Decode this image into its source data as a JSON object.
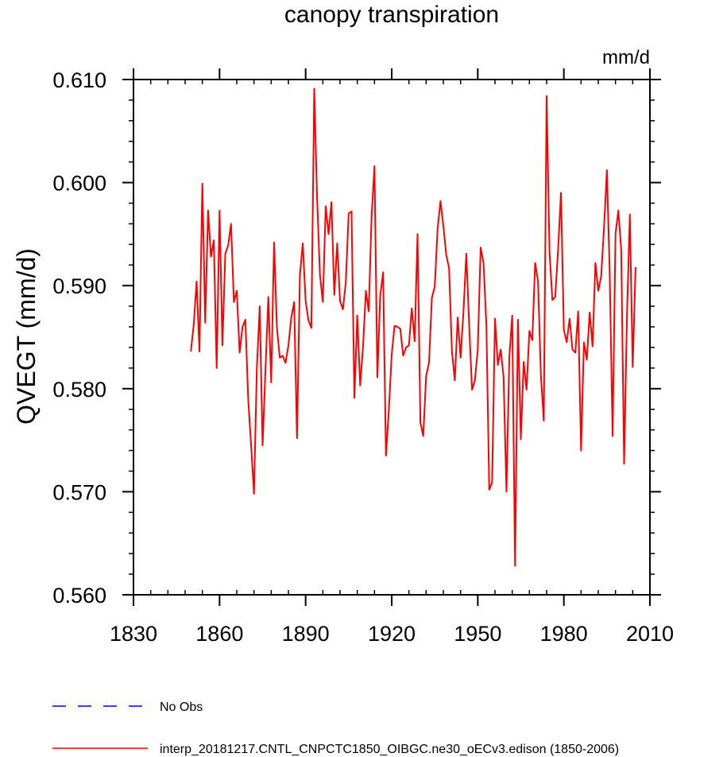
{
  "chart_data": {
    "type": "line",
    "title": "canopy transpiration",
    "units": "mm/d",
    "ylabel": "QVEGT  (mm/d)",
    "xlabel": "",
    "xlim": [
      1830,
      2010
    ],
    "ylim": [
      0.56,
      0.61
    ],
    "x_ticks": [
      1830,
      1860,
      1890,
      1920,
      1950,
      1980,
      2010
    ],
    "x_tick_labels": [
      "1830",
      "1860",
      "1890",
      "1920",
      "1950",
      "1980",
      "2010"
    ],
    "y_ticks": [
      0.56,
      0.57,
      0.58,
      0.59,
      0.6,
      0.61
    ],
    "y_tick_labels": [
      "0.560",
      "0.570",
      "0.580",
      "0.590",
      "0.600",
      "0.610"
    ],
    "x_minor_step": 6,
    "y_minor_step": 0.002,
    "grid": false,
    "legend_position": "bottom-left",
    "series": [
      {
        "name": "No Obs",
        "color": "#0000ff",
        "dash": true,
        "x": [],
        "values": []
      },
      {
        "name": "interp_20181217.CNTL_CNPCTC1850_OIBGC.ne30_oECv3.edison (1850-2006)",
        "color": "#ff0000",
        "dash": false,
        "x_start": 1850,
        "x_step": 1,
        "values": [
          0.5836,
          0.5862,
          0.5904,
          0.5836,
          0.5999,
          0.5864,
          0.5973,
          0.5928,
          0.5944,
          0.582,
          0.5973,
          0.5842,
          0.5931,
          0.5939,
          0.596,
          0.5884,
          0.5895,
          0.5835,
          0.586,
          0.5867,
          0.5789,
          0.5745,
          0.5698,
          0.582,
          0.588,
          0.5745,
          0.5818,
          0.5889,
          0.5806,
          0.5942,
          0.5859,
          0.583,
          0.5832,
          0.5825,
          0.5842,
          0.5869,
          0.5884,
          0.5752,
          0.591,
          0.5941,
          0.5885,
          0.5866,
          0.5859,
          0.6091,
          0.5985,
          0.591,
          0.5884,
          0.5977,
          0.595,
          0.5981,
          0.5891,
          0.5941,
          0.5885,
          0.5877,
          0.5903,
          0.597,
          0.5972,
          0.5791,
          0.5871,
          0.5803,
          0.584,
          0.5895,
          0.5875,
          0.5968,
          0.6016,
          0.5811,
          0.589,
          0.5913,
          0.5735,
          0.5779,
          0.5833,
          0.5861,
          0.586,
          0.5858,
          0.5832,
          0.584,
          0.5842,
          0.5878,
          0.5846,
          0.595,
          0.5767,
          0.5754,
          0.5812,
          0.5825,
          0.5888,
          0.5899,
          0.5955,
          0.5982,
          0.5958,
          0.593,
          0.5917,
          0.5836,
          0.5808,
          0.5869,
          0.583,
          0.5874,
          0.5931,
          0.5862,
          0.5799,
          0.5808,
          0.5838,
          0.5937,
          0.5922,
          0.5862,
          0.5702,
          0.5709,
          0.5868,
          0.5823,
          0.5838,
          0.5811,
          0.57,
          0.5831,
          0.5871,
          0.5628,
          0.5867,
          0.5751,
          0.5826,
          0.5799,
          0.5856,
          0.5847,
          0.5922,
          0.5904,
          0.5813,
          0.5769,
          0.6084,
          0.5933,
          0.5886,
          0.5889,
          0.5935,
          0.599,
          0.5857,
          0.5845,
          0.5868,
          0.5838,
          0.5835,
          0.5875,
          0.574,
          0.5845,
          0.5828,
          0.5874,
          0.5841,
          0.5922,
          0.5895,
          0.5909,
          0.5956,
          0.6012,
          0.5911,
          0.5754,
          0.595,
          0.5973,
          0.5934,
          0.5727,
          0.587,
          0.5969,
          0.5821,
          0.5918
        ]
      }
    ]
  }
}
